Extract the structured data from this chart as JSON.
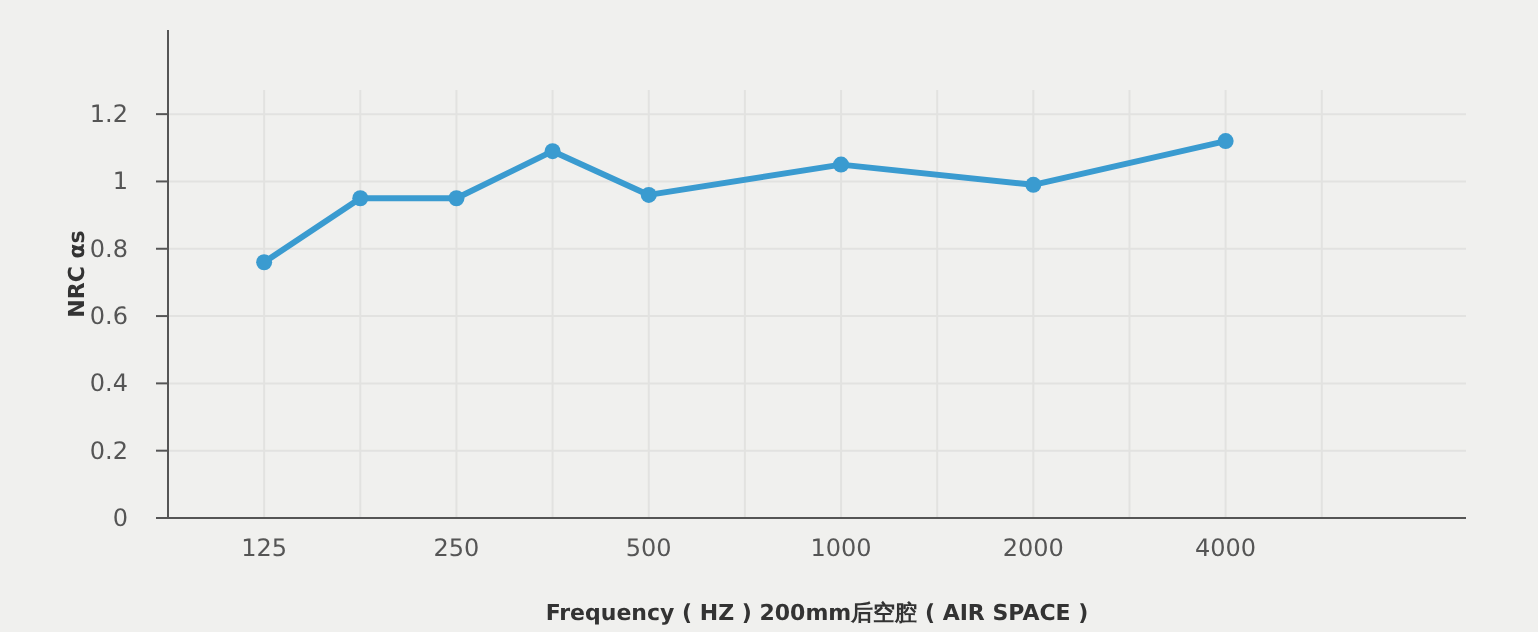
{
  "chart_data": {
    "type": "line",
    "xlabel": "Frequency ( HZ )  200mm后空腔 ( AIR SPACE )",
    "ylabel": "NRC αs",
    "categories": [
      "125",
      null,
      "250",
      null,
      "500",
      null,
      "1000",
      null,
      "2000",
      null,
      "4000",
      null
    ],
    "series": [
      {
        "color": "#3a9bd0",
        "values": [
          0.76,
          0.95,
          0.95,
          1.09,
          0.96,
          null,
          1.05,
          null,
          0.99,
          null,
          1.12,
          null
        ]
      }
    ],
    "ylim": [
      0,
      1.45
    ],
    "yticks": [
      0,
      0.2,
      0.4,
      0.6,
      0.8,
      1,
      1.2
    ],
    "grid": true,
    "marker": "circle",
    "line_style": "solid"
  }
}
